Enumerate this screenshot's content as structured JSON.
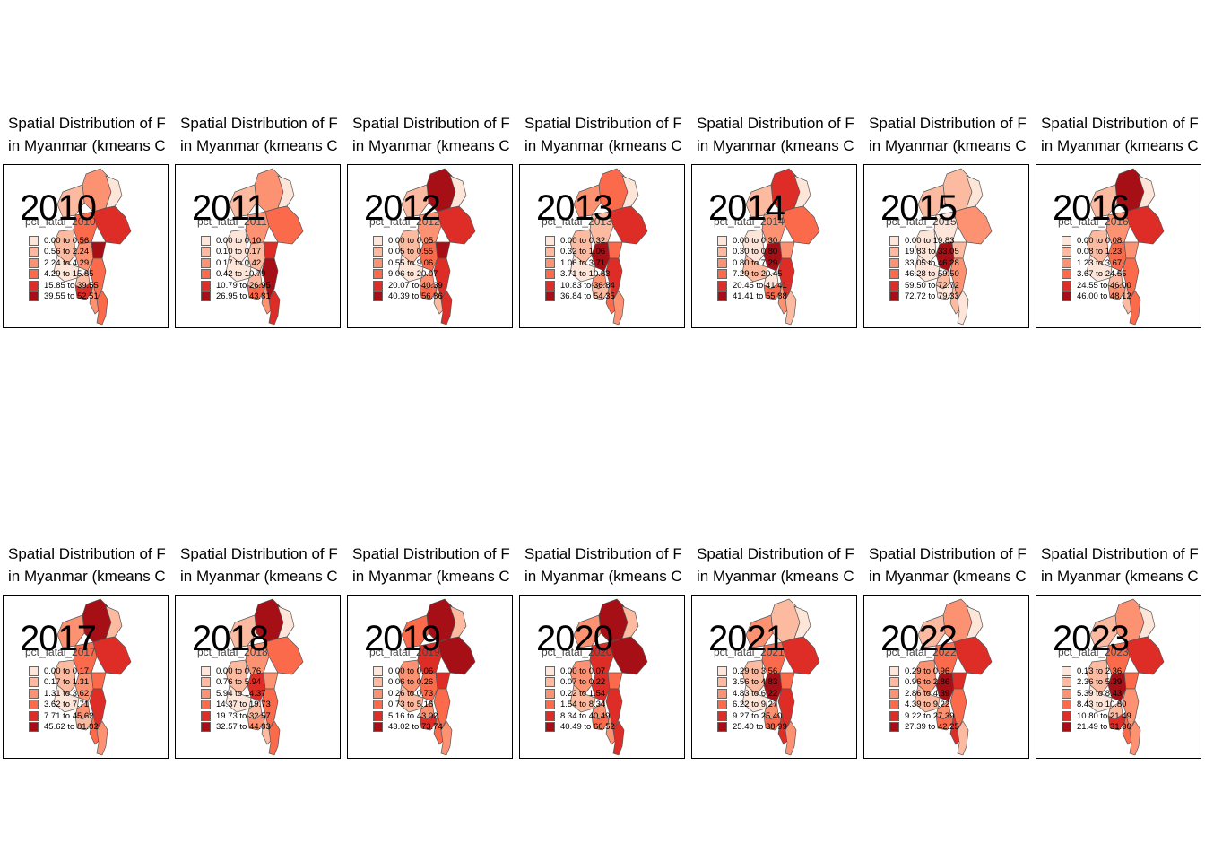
{
  "title_lines": [
    "Spatial Distribution of F",
    "in Myanmar (kmeans C"
  ],
  "palette": [
    "#fee5d9",
    "#fcbba1",
    "#fc9272",
    "#fb6a4a",
    "#de2d26",
    "#a50f15"
  ],
  "panels": [
    {
      "year": "2010",
      "legend_title": "pct_fatal_2010",
      "classes": [
        "0.00 to 0.56",
        "0.56 to 2.24",
        "2.24 to 4.29",
        "4.29 to 15.85",
        "15.85 to 39.55",
        "39.55 to 52.51"
      ],
      "regions": [
        2,
        0,
        1,
        3,
        4,
        2,
        1,
        5,
        3,
        0,
        1,
        4,
        2,
        3
      ]
    },
    {
      "year": "2011",
      "legend_title": "pct_fatal_2011",
      "classes": [
        "0.00 to 0.10",
        "0.10 to 0.17",
        "0.17 to 0.42",
        "0.42 to 10.79",
        "10.79 to 26.95",
        "26.95 to 43.81"
      ],
      "regions": [
        2,
        0,
        1,
        2,
        3,
        1,
        0,
        4,
        5,
        0,
        1,
        3,
        2,
        4
      ]
    },
    {
      "year": "2012",
      "legend_title": "pct_fatal_2012",
      "classes": [
        "0.00 to 0.05",
        "0.05 to 0.55",
        "0.55 to 9.06",
        "9.06 to 20.07",
        "20.07 to 40.39",
        "40.39 to 56.86"
      ],
      "regions": [
        5,
        0,
        1,
        2,
        4,
        3,
        1,
        5,
        4,
        0,
        2,
        3,
        1,
        4
      ]
    },
    {
      "year": "2013",
      "legend_title": "pct_fatal_2013",
      "classes": [
        "0.00 to 0.32",
        "0.32 to 1.06",
        "1.06 to 3.71",
        "3.71 to 10.83",
        "10.83 to 36.84",
        "36.84 to 54.35"
      ],
      "regions": [
        3,
        0,
        2,
        1,
        4,
        5,
        1,
        3,
        4,
        0,
        2,
        1,
        3,
        2
      ]
    },
    {
      "year": "2014",
      "legend_title": "pct_fatal_2014",
      "classes": [
        "0.00 to 0.30",
        "0.30 to 0.80",
        "0.80 to 7.29",
        "7.29 to 20.45",
        "20.45 to 41.41",
        "41.41 to 55.88"
      ],
      "regions": [
        4,
        0,
        1,
        2,
        3,
        5,
        0,
        2,
        4,
        1,
        0,
        3,
        2,
        1
      ]
    },
    {
      "year": "2015",
      "legend_title": "pct_fatal_2015",
      "classes": [
        "0.00 to 19.83",
        "19.83 to 33.05",
        "33.05 to 46.28",
        "46.28 to 59.50",
        "59.50 to 72.72",
        "72.72 to 79.33"
      ],
      "regions": [
        1,
        0,
        1,
        0,
        2,
        5,
        0,
        1,
        2,
        0,
        1,
        0,
        1,
        0
      ]
    },
    {
      "year": "2016",
      "legend_title": "pct_fatal_2016",
      "classes": [
        "0.00 to 0.08",
        "0.08 to 1.23",
        "1.23 to 3.67",
        "3.67 to 24.55",
        "24.55 to 46.00",
        "46.00 to 48.12"
      ],
      "regions": [
        5,
        0,
        1,
        2,
        4,
        3,
        1,
        2,
        3,
        0,
        1,
        2,
        1,
        3
      ]
    },
    {
      "year": "2017",
      "legend_title": "pct_fatal_2017",
      "classes": [
        "0.00 to 0.17",
        "0.17 to 1.31",
        "1.31 to 3.62",
        "3.62 to 7.71",
        "7.71 to 45.62",
        "45.62 to 81.82"
      ],
      "regions": [
        5,
        1,
        2,
        3,
        4,
        2,
        1,
        3,
        4,
        0,
        2,
        1,
        3,
        2
      ]
    },
    {
      "year": "2018",
      "legend_title": "pct_fatal_2018",
      "classes": [
        "0.00 to 0.76",
        "0.76 to 5.94",
        "5.94 to 14.37",
        "14.37 to 19.73",
        "19.73 to 32.57",
        "32.57 to 44.83"
      ],
      "regions": [
        5,
        0,
        1,
        2,
        3,
        4,
        1,
        2,
        3,
        0,
        1,
        2,
        1,
        3
      ]
    },
    {
      "year": "2019",
      "legend_title": "pct_fatal_2019",
      "classes": [
        "0.00 to 0.06",
        "0.06 to 0.26",
        "0.26 to 0.73",
        "0.73 to 5.16",
        "5.16 to 43.02",
        "43.02 to 73.74"
      ],
      "regions": [
        5,
        1,
        3,
        4,
        5,
        3,
        2,
        4,
        3,
        1,
        2,
        4,
        3,
        2
      ]
    },
    {
      "year": "2020",
      "legend_title": "pct_fatal_2020",
      "classes": [
        "0.00 to 0.07",
        "0.07 to 0.22",
        "0.22 to 1.54",
        "1.54 to 8.34",
        "8.34 to 40.49",
        "40.49 to 66.52"
      ],
      "regions": [
        5,
        1,
        2,
        4,
        5,
        4,
        2,
        3,
        4,
        1,
        2,
        3,
        2,
        4
      ]
    },
    {
      "year": "2021",
      "legend_title": "pct_fatal_2021",
      "classes": [
        "0.29 to 3.56",
        "3.56 to 4.83",
        "4.83 to 6.22",
        "6.22 to 9.27",
        "9.27 to 25.40",
        "25.40 to 38.99"
      ],
      "regions": [
        1,
        0,
        2,
        3,
        4,
        5,
        1,
        3,
        4,
        0,
        2,
        3,
        4,
        2
      ]
    },
    {
      "year": "2022",
      "legend_title": "pct_fatal_2022",
      "classes": [
        "0.29 to 0.96",
        "0.96 to 2.86",
        "2.86 to 4.39",
        "4.39 to 9.22",
        "9.22 to 27.39",
        "27.39 to 42.25"
      ],
      "regions": [
        2,
        0,
        1,
        3,
        4,
        5,
        2,
        4,
        3,
        1,
        2,
        3,
        4,
        1
      ]
    },
    {
      "year": "2023",
      "legend_title": "pct_fatal_2023",
      "classes": [
        "0.13 to 2.36",
        "2.36 to 5.39",
        "5.39 to 8.43",
        "8.43 to 10.80",
        "10.80 to 21.49",
        "21.49 to 31.30"
      ],
      "regions": [
        2,
        0,
        1,
        3,
        4,
        5,
        1,
        3,
        2,
        0,
        1,
        4,
        3,
        2
      ]
    }
  ]
}
